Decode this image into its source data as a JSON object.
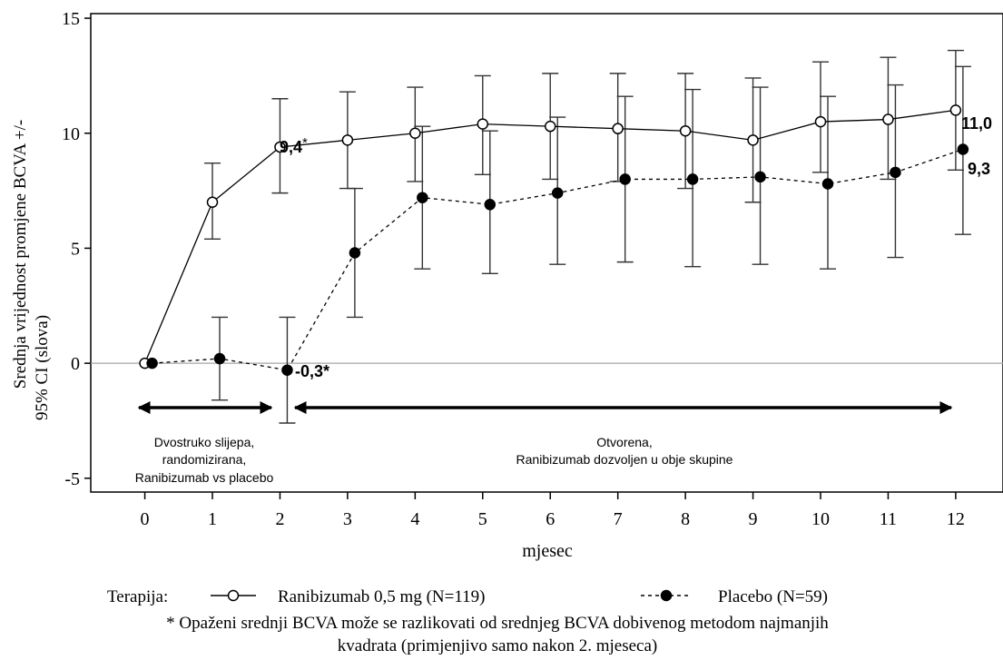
{
  "chart_data": {
    "type": "line",
    "ylabel_line1": "Srednja vrijednost promjene BCVA  +/-",
    "ylabel_line2": "95% CI  (slova)",
    "xlabel": "mjesec",
    "x": [
      0,
      1,
      2,
      3,
      4,
      5,
      6,
      7,
      8,
      9,
      10,
      11,
      12
    ],
    "xticks": [
      "0",
      "1",
      "2",
      "3",
      "4",
      "5",
      "6",
      "7",
      "8",
      "9",
      "10",
      "11",
      "12"
    ],
    "yticks": [
      "15",
      "10",
      "5",
      "0",
      "-5"
    ],
    "ytick_values": [
      15,
      10,
      5,
      0,
      -5
    ],
    "xlim": [
      -0.8,
      12.7
    ],
    "ylim": [
      -5.6,
      15.2
    ],
    "reference_line_y": 0,
    "series": [
      {
        "name": "Ranibizumab 0,5 mg (N=119)",
        "marker": "open-circle",
        "line": "solid",
        "values": [
          0,
          7.0,
          9.4,
          9.7,
          10.0,
          10.4,
          10.3,
          10.2,
          10.1,
          9.7,
          10.5,
          10.6,
          11.0
        ],
        "lower": [
          0,
          5.4,
          7.4,
          7.6,
          7.9,
          8.2,
          8.0,
          7.9,
          7.6,
          7.0,
          8.3,
          8.0,
          8.4
        ],
        "upper": [
          0,
          8.7,
          11.5,
          11.8,
          12.0,
          12.5,
          12.6,
          12.6,
          12.6,
          12.4,
          13.1,
          13.3,
          13.6
        ]
      },
      {
        "name": "Placebo (N=59)",
        "marker": "filled-circle",
        "line": "dashed",
        "values": [
          0,
          0.2,
          -0.3,
          4.8,
          7.2,
          6.9,
          7.4,
          8.0,
          8.0,
          8.1,
          7.8,
          8.3,
          9.3
        ],
        "lower": [
          0,
          -1.6,
          -2.6,
          2.0,
          4.1,
          3.9,
          4.3,
          4.4,
          4.2,
          4.3,
          4.1,
          4.6,
          5.6
        ],
        "upper": [
          0,
          2.0,
          2.0,
          7.6,
          10.3,
          10.1,
          10.7,
          11.6,
          11.9,
          12.0,
          11.6,
          12.1,
          12.9
        ]
      }
    ],
    "annotations": {
      "ranib_m2": "9,4",
      "ranib_m2_star": "*",
      "ranib_m12": "11,0",
      "placebo_m2": "-0,3*",
      "placebo_m12": "9,3"
    },
    "phases": [
      {
        "lines": [
          "Dvostruko slijepa,",
          "randomizirana,",
          "Ranibizumab vs placebo"
        ],
        "from": 0,
        "to": 2
      },
      {
        "lines": [
          "Otvorena,",
          "Ranibizumab dozvoljen u obje skupine"
        ],
        "from": 2.25,
        "to": 12
      }
    ],
    "legend": {
      "title": "Terapija:",
      "placement": "bottom"
    }
  },
  "footnote": {
    "line1": "* Opaženi srednji BCVA može se razlikovati od srednjeg BCVA dobivenog metodom najmanjih",
    "line2": "kvadrata (primjenjivo samo nakon 2. mjeseca)"
  }
}
